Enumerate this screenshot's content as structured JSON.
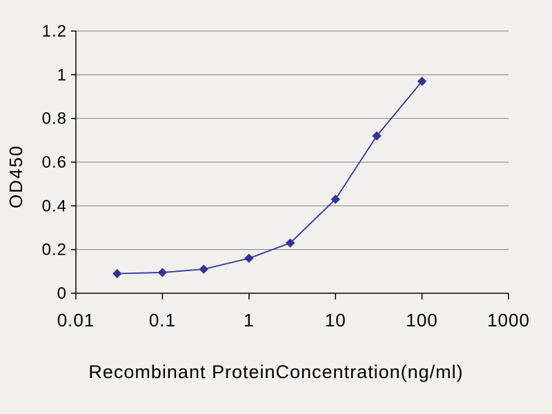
{
  "chart_data": {
    "type": "line",
    "title": "",
    "xlabel": "Recombinant ProteinConcentration(ng/ml)",
    "ylabel": "OD450",
    "x_scale": "log",
    "xlim": [
      0.01,
      1000
    ],
    "ylim": [
      0,
      1.2
    ],
    "x_ticks": [
      0.01,
      0.1,
      1,
      10,
      100,
      1000
    ],
    "x_tick_labels": [
      "0.01",
      "0.1",
      "1",
      "10",
      "100",
      "1000"
    ],
    "y_ticks": [
      0,
      0.2,
      0.4,
      0.6,
      0.8,
      1,
      1.2
    ],
    "y_tick_labels": [
      "0",
      "0.2",
      "0.4",
      "0.6",
      "0.8",
      "1",
      "1.2"
    ],
    "grid": "horizontal",
    "legend": "none",
    "series": [
      {
        "name": "OD450",
        "marker": "diamond",
        "color": "#333399",
        "x": [
          0.03,
          0.1,
          0.3,
          1,
          3,
          10,
          30,
          100
        ],
        "y": [
          0.09,
          0.095,
          0.11,
          0.16,
          0.23,
          0.43,
          0.72,
          0.97
        ]
      }
    ],
    "colors": {
      "background": "#f1f0ee",
      "gridline": "#808080",
      "axis": "#000000",
      "text": "#000000"
    }
  }
}
